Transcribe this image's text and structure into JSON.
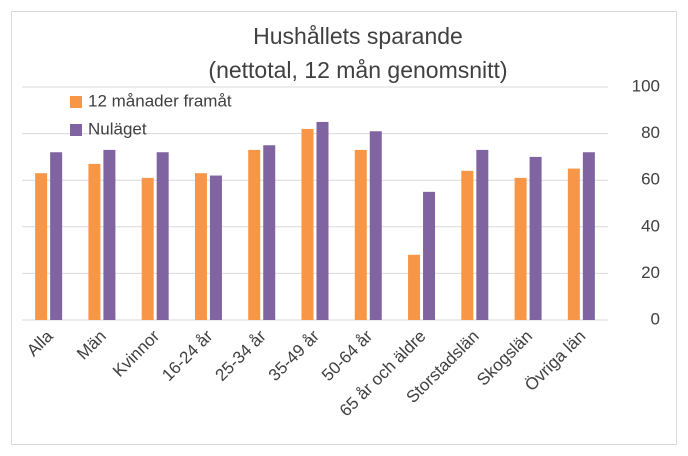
{
  "chart_data": {
    "type": "bar",
    "title": "Hushållets sparande",
    "subtitle": "(nettotal, 12 mån genomsnitt)",
    "categories": [
      "Alla",
      "Män",
      "Kvinnor",
      "16-24 år",
      "25-34 år",
      "35-49 år",
      "50-64 år",
      "65 år och äldre",
      "Storstadslän",
      "Skogslän",
      "Övriga län"
    ],
    "series": [
      {
        "name": "12 månader framåt",
        "color": "#f79646",
        "values": [
          63,
          67,
          61,
          63,
          73,
          82,
          73,
          28,
          64,
          61,
          65
        ]
      },
      {
        "name": "Nuläget",
        "color": "#8064a2",
        "values": [
          72,
          73,
          72,
          62,
          75,
          85,
          81,
          55,
          73,
          70,
          72
        ]
      }
    ],
    "ylim": [
      0,
      100
    ],
    "yticks": [
      0,
      20,
      40,
      60,
      80,
      100
    ],
    "grid": true,
    "legend": "top-left"
  }
}
